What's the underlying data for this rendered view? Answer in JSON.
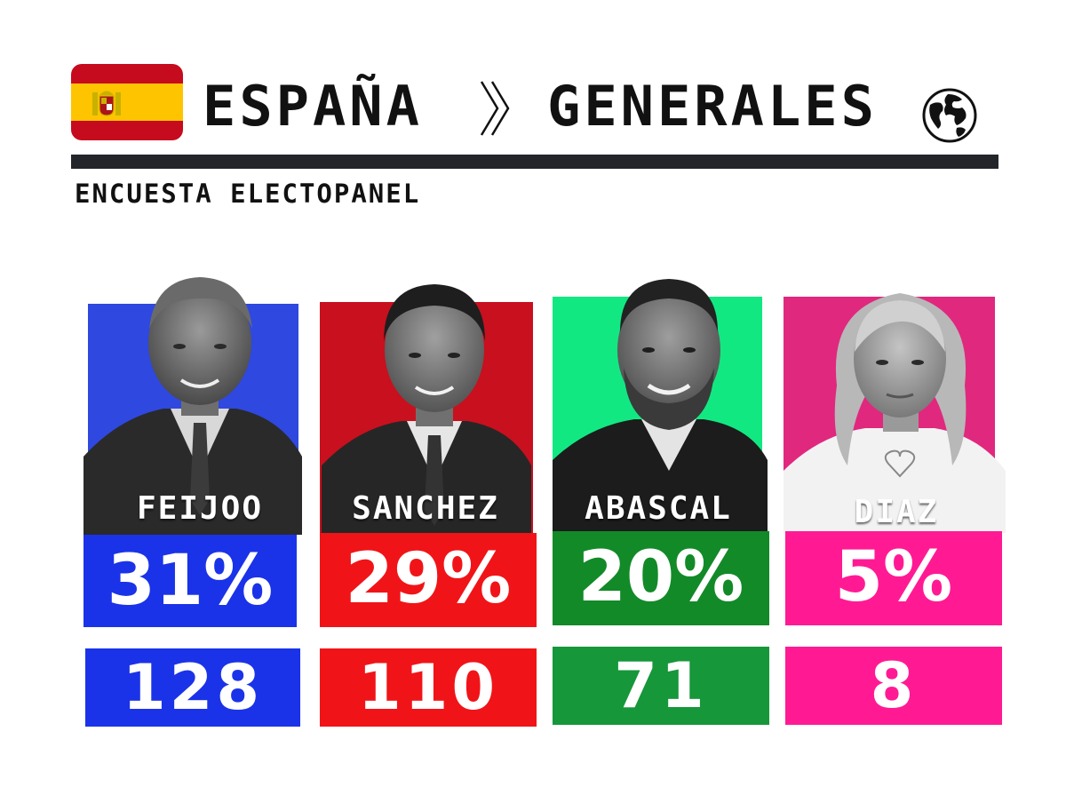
{
  "header": {
    "country": "ESPAÑA",
    "section": "GENERALES",
    "subtitle": "ENCUESTA ELECTOPANEL",
    "flag_icon": "spain-flag-icon",
    "separator_icon": "double-chevron-right-icon",
    "globe_icon": "globe-icon"
  },
  "candidates": [
    {
      "name": "FEIJOO",
      "percent": "31%",
      "seats": "128",
      "bg_color": "#2f48e0",
      "pct_color": "#1a33e8",
      "seats_color": "#1a33e8"
    },
    {
      "name": "SANCHEZ",
      "percent": "29%",
      "seats": "110",
      "bg_color": "#c8101e",
      "pct_color": "#f01418",
      "seats_color": "#f01418"
    },
    {
      "name": "ABASCAL",
      "percent": "20%",
      "seats": "71",
      "bg_color": "#12e882",
      "pct_color": "#128a28",
      "seats_color": "#16973a"
    },
    {
      "name": "DIAZ",
      "percent": "5%",
      "seats": "8",
      "bg_color": "#e0287e",
      "pct_color": "#ff1a94",
      "seats_color": "#ff1a94"
    }
  ]
}
